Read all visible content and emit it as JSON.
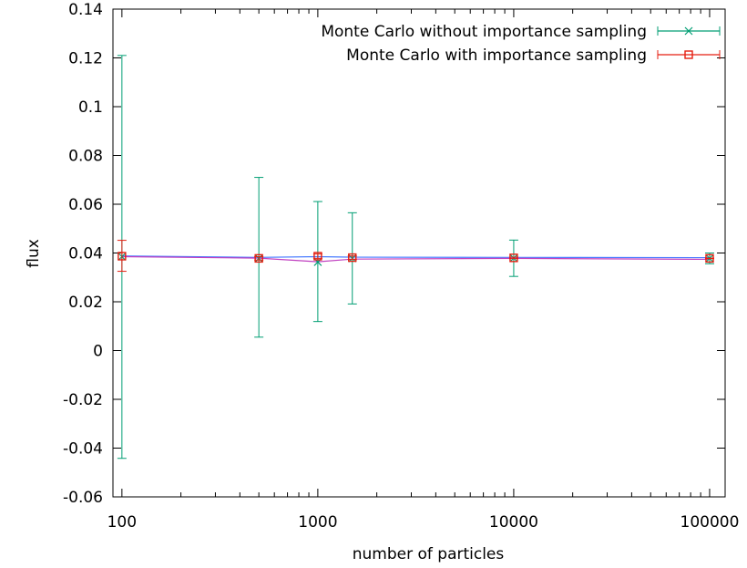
{
  "chart_data": {
    "type": "scatter",
    "xlabel": "number of particles",
    "ylabel": "flux",
    "xscale": "log",
    "xlim": [
      90,
      120000
    ],
    "ylim": [
      -0.06,
      0.14
    ],
    "grid": false,
    "legend_position": "top-right",
    "x_ticks": [
      100,
      1000,
      10000,
      100000
    ],
    "x_tick_labels": [
      "100",
      "1000",
      "10000",
      "100000"
    ],
    "y_ticks": [
      -0.06,
      -0.04,
      -0.02,
      0,
      0.02,
      0.04,
      0.06,
      0.08,
      0.1,
      0.12,
      0.14
    ],
    "y_tick_labels": [
      "-0.06",
      "-0.04",
      "-0.02",
      "0",
      "0.02",
      "0.04",
      "0.06",
      "0.08",
      "0.1",
      "0.12",
      "0.14"
    ],
    "series": [
      {
        "name": "Monte Carlo without importance sampling",
        "color": "#009e73",
        "marker": "x",
        "points": [
          {
            "x": 100,
            "y": 0.0385,
            "yerr_low": -0.0442,
            "yerr_high": 0.121
          },
          {
            "x": 500,
            "y": 0.0378,
            "yerr_low": 0.0055,
            "yerr_high": 0.071
          },
          {
            "x": 1000,
            "y": 0.0363,
            "yerr_low": 0.0119,
            "yerr_high": 0.0611
          },
          {
            "x": 1500,
            "y": 0.0378,
            "yerr_low": 0.0191,
            "yerr_high": 0.0565
          },
          {
            "x": 10000,
            "y": 0.0379,
            "yerr_low": 0.0304,
            "yerr_high": 0.0453
          },
          {
            "x": 100000,
            "y": 0.0378,
            "yerr_low": 0.0356,
            "yerr_high": 0.04
          }
        ]
      },
      {
        "name": "Monte Carlo with importance sampling",
        "color": "#e51e10",
        "marker": "square",
        "points": [
          {
            "x": 100,
            "y": 0.0387,
            "yerr_low": 0.0325,
            "yerr_high": 0.0452
          },
          {
            "x": 500,
            "y": 0.0378,
            "yerr_low": 0.0371,
            "yerr_high": 0.0385
          },
          {
            "x": 1000,
            "y": 0.0387,
            "yerr_low": 0.0378,
            "yerr_high": 0.0396
          },
          {
            "x": 1500,
            "y": 0.0381,
            "yerr_low": 0.0374,
            "yerr_high": 0.0388
          },
          {
            "x": 10000,
            "y": 0.038,
            "yerr_low": 0.0377,
            "yerr_high": 0.0383
          },
          {
            "x": 100000,
            "y": 0.0378,
            "yerr_low": 0.0377,
            "yerr_high": 0.0379
          }
        ]
      }
    ],
    "connecting_lines": [
      {
        "color": "#4a7cff",
        "points": [
          [
            100,
            0.0388
          ],
          [
            500,
            0.0382
          ],
          [
            1000,
            0.0385
          ],
          [
            1500,
            0.0383
          ],
          [
            10000,
            0.0382
          ],
          [
            100000,
            0.0381
          ]
        ]
      },
      {
        "color": "#c040c0",
        "points": [
          [
            100,
            0.0385
          ],
          [
            500,
            0.0379
          ],
          [
            1000,
            0.0364
          ],
          [
            1500,
            0.0375
          ],
          [
            10000,
            0.0378
          ],
          [
            100000,
            0.0374
          ]
        ]
      }
    ]
  }
}
